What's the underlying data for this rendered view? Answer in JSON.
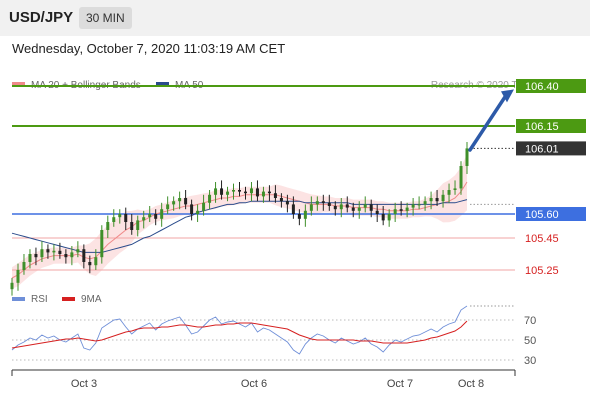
{
  "header": {
    "pair": "USD/JPY",
    "timeframe": "30 MIN"
  },
  "datetime": "Wednesday, October 7, 2020 11:03:19 AM CET",
  "legend": {
    "bb": {
      "label": "MA 20 + Bollinger Bands",
      "color": "#f08a8a"
    },
    "ma50": {
      "label": "MA 50",
      "color": "#2b4c8c"
    }
  },
  "copyright": "Research © 2020 Trading Central",
  "rsi_legend": {
    "rsi": {
      "label": "RSI",
      "color": "#6f8fd8"
    },
    "ma9": {
      "label": "9MA",
      "color": "#d62020"
    }
  },
  "chart_data": [
    {
      "type": "candlestick",
      "ylim": [
        105.0,
        106.5
      ],
      "x_ticks": [
        "Oct 3",
        "Oct 6",
        "Oct 7",
        "Oct 8"
      ],
      "levels": [
        {
          "value": 106.4,
          "label": "106.40",
          "style": "resistance",
          "color": "#4c9a12"
        },
        {
          "value": 106.15,
          "label": "106.15",
          "style": "resistance",
          "color": "#4c9a12"
        },
        {
          "value": 106.01,
          "label": "106.01",
          "style": "last",
          "color": "#333333"
        },
        {
          "value": 105.6,
          "label": "105.60",
          "style": "pivot",
          "color": "#3d6fe0"
        },
        {
          "value": 105.45,
          "label": "105.45",
          "style": "support",
          "color": "#d62020"
        },
        {
          "value": 105.25,
          "label": "105.25",
          "style": "support",
          "color": "#d62020"
        }
      ],
      "projection": {
        "from": 106.0,
        "to": 106.36
      },
      "series": [
        {
          "name": "Price",
          "values": [
            105.17,
            105.25,
            105.3,
            105.35,
            105.33,
            105.38,
            105.36,
            105.37,
            105.35,
            105.33,
            105.36,
            105.38,
            105.3,
            105.28,
            105.33,
            105.5,
            105.55,
            105.58,
            105.6,
            105.55,
            105.5,
            105.56,
            105.58,
            105.6,
            105.57,
            105.63,
            105.66,
            105.68,
            105.7,
            105.66,
            105.6,
            105.62,
            105.67,
            105.72,
            105.76,
            105.72,
            105.74,
            105.75,
            105.74,
            105.73,
            105.76,
            105.71,
            105.74,
            105.73,
            105.7,
            105.68,
            105.66,
            105.6,
            105.57,
            105.62,
            105.66,
            105.68,
            105.67,
            105.65,
            105.63,
            105.66,
            105.64,
            105.62,
            105.64,
            105.66,
            105.62,
            105.6,
            105.56,
            105.6,
            105.63,
            105.62,
            105.64,
            105.66,
            105.66,
            105.68,
            105.7,
            105.68,
            105.72,
            105.75,
            105.76,
            105.9,
            106.01
          ]
        },
        {
          "name": "MA 20",
          "values": [
            105.2,
            105.22,
            105.25,
            105.28,
            105.3,
            105.32,
            105.33,
            105.34,
            105.34,
            105.34,
            105.34,
            105.35,
            105.33,
            105.32,
            105.33,
            105.37,
            105.41,
            105.44,
            105.47,
            105.5,
            105.52,
            105.55,
            105.56,
            105.58,
            105.6,
            105.61,
            105.62,
            105.63,
            105.64,
            105.65,
            105.65,
            105.66,
            105.67,
            105.68,
            105.69,
            105.7,
            105.7,
            105.71,
            105.71,
            105.72,
            105.72,
            105.72,
            105.72,
            105.72,
            105.72,
            105.71,
            105.7,
            105.69,
            105.68,
            105.67,
            105.66,
            105.66,
            105.66,
            105.66,
            105.65,
            105.65,
            105.65,
            105.64,
            105.64,
            105.64,
            105.64,
            105.63,
            105.63,
            105.62,
            105.62,
            105.62,
            105.62,
            105.63,
            105.63,
            105.64,
            105.65,
            105.66,
            105.67,
            105.68,
            105.7,
            105.74,
            105.8
          ]
        },
        {
          "name": "MA 50",
          "values": [
            105.48,
            105.47,
            105.46,
            105.45,
            105.44,
            105.43,
            105.42,
            105.41,
            105.4,
            105.39,
            105.38,
            105.37,
            105.36,
            105.36,
            105.36,
            105.36,
            105.37,
            105.38,
            105.39,
            105.4,
            105.41,
            105.43,
            105.45,
            105.46,
            105.48,
            105.5,
            105.52,
            105.54,
            105.56,
            105.58,
            105.59,
            105.61,
            105.62,
            105.63,
            105.64,
            105.65,
            105.66,
            105.66,
            105.67,
            105.67,
            105.68,
            105.68,
            105.68,
            105.68,
            105.68,
            105.68,
            105.68,
            105.68,
            105.68,
            105.67,
            105.67,
            105.67,
            105.67,
            105.67,
            105.67,
            105.67,
            105.67,
            105.66,
            105.66,
            105.66,
            105.66,
            105.66,
            105.66,
            105.66,
            105.66,
            105.66,
            105.66,
            105.66,
            105.66,
            105.66,
            105.66,
            105.66,
            105.67,
            105.67,
            105.67,
            105.68,
            105.69
          ]
        }
      ]
    },
    {
      "type": "line",
      "ylim": [
        20,
        85
      ],
      "y_ticks": [
        30,
        50,
        70
      ],
      "series": [
        {
          "name": "RSI",
          "values": [
            40,
            45,
            48,
            52,
            50,
            55,
            52,
            54,
            50,
            48,
            52,
            56,
            42,
            40,
            47,
            62,
            66,
            70,
            71,
            63,
            56,
            61,
            64,
            67,
            60,
            66,
            69,
            71,
            73,
            65,
            56,
            58,
            64,
            70,
            73,
            66,
            68,
            69,
            66,
            63,
            67,
            58,
            62,
            60,
            56,
            52,
            48,
            40,
            36,
            46,
            52,
            56,
            54,
            50,
            47,
            52,
            49,
            46,
            48,
            52,
            46,
            43,
            38,
            45,
            50,
            48,
            51,
            54,
            55,
            58,
            61,
            58,
            63,
            66,
            68,
            80,
            84
          ]
        },
        {
          "name": "9MA",
          "values": [
            42,
            43,
            44,
            45,
            46,
            47,
            48,
            49,
            50,
            51,
            51,
            52,
            51,
            50,
            49,
            50,
            52,
            54,
            56,
            58,
            59,
            61,
            62,
            62,
            62,
            63,
            63,
            64,
            65,
            65,
            64,
            63,
            63,
            64,
            65,
            65,
            66,
            66,
            67,
            67,
            67,
            66,
            65,
            64,
            63,
            62,
            61,
            58,
            55,
            53,
            51,
            50,
            50,
            50,
            50,
            50,
            50,
            50,
            49,
            49,
            49,
            48,
            47,
            47,
            47,
            47,
            47,
            48,
            49,
            50,
            52,
            53,
            55,
            57,
            59,
            63,
            69
          ]
        }
      ]
    }
  ]
}
